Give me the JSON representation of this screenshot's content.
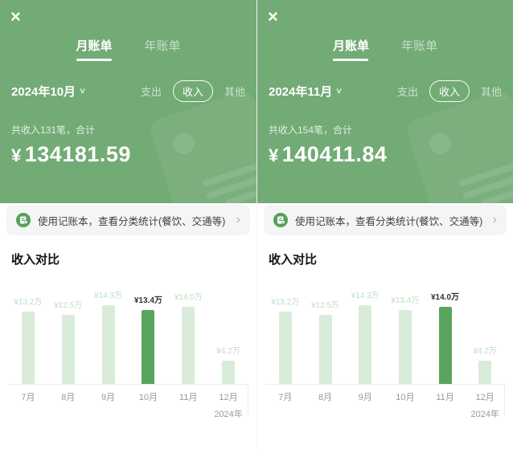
{
  "icons": {
    "close": "×",
    "chevron_down": "∨",
    "chevron_right": "›"
  },
  "colors": {
    "header_green": "#72ab75",
    "bar_light": "#d9ecd9",
    "bar_highlight": "#5aa55e",
    "bar_label_light": "#bedfbf",
    "bar_label_dark": "#333333",
    "banner_bg": "#f5f5f6",
    "banner_icon_green": "#53a257",
    "axis_text": "#999999",
    "axis_line": "#ececec"
  },
  "panels": [
    {
      "tabs": [
        {
          "label": "月账单",
          "active": true
        },
        {
          "label": "年账单",
          "active": false
        }
      ],
      "period": "2024年10月",
      "filters": [
        {
          "label": "支出",
          "selected": false
        },
        {
          "label": "收入",
          "selected": true
        },
        {
          "label": "其他",
          "selected": false
        }
      ],
      "summary": "共收入131笔，合计",
      "currency": "¥",
      "amount": "134181.59",
      "banner_text": "使用记账本，查看分类统计(餐饮、交通等)",
      "section_title": "收入对比"
    },
    {
      "tabs": [
        {
          "label": "月账单",
          "active": true
        },
        {
          "label": "年账单",
          "active": false
        }
      ],
      "period": "2024年11月",
      "filters": [
        {
          "label": "支出",
          "selected": false
        },
        {
          "label": "收入",
          "selected": true
        },
        {
          "label": "其他",
          "selected": false
        }
      ],
      "summary": "共收入154笔，合计",
      "currency": "¥",
      "amount": "140411.84",
      "banner_text": "使用记账本，查看分类统计(餐饮、交通等)",
      "section_title": "收入对比"
    }
  ],
  "chart_data": [
    {
      "type": "bar",
      "title": "收入对比 (2024年10月账单)",
      "categories": [
        "7月",
        "8月",
        "9月",
        "10月",
        "11月",
        "12月"
      ],
      "values": [
        13.2,
        12.5,
        14.3,
        13.4,
        14.0,
        4.2
      ],
      "labels": [
        "¥13.2万",
        "¥12.5万",
        "¥14.3万",
        "¥13.4万",
        "¥14.0万",
        "¥4.2万"
      ],
      "highlight_index": 3,
      "unit": "万",
      "x_axis_note": "2024年",
      "ylim": [
        0,
        14.3
      ],
      "grid": false,
      "legend": false
    },
    {
      "type": "bar",
      "title": "收入对比 (2024年11月账单)",
      "categories": [
        "7月",
        "8月",
        "9月",
        "10月",
        "11月",
        "12月"
      ],
      "values": [
        13.2,
        12.5,
        14.3,
        13.4,
        14.0,
        4.2
      ],
      "labels": [
        "¥13.2万",
        "¥12.5万",
        "¥14.3万",
        "¥13.4万",
        "¥14.0万",
        "¥4.2万"
      ],
      "highlight_index": 4,
      "unit": "万",
      "x_axis_note": "2024年",
      "ylim": [
        0,
        14.3
      ],
      "grid": false,
      "legend": false
    }
  ]
}
